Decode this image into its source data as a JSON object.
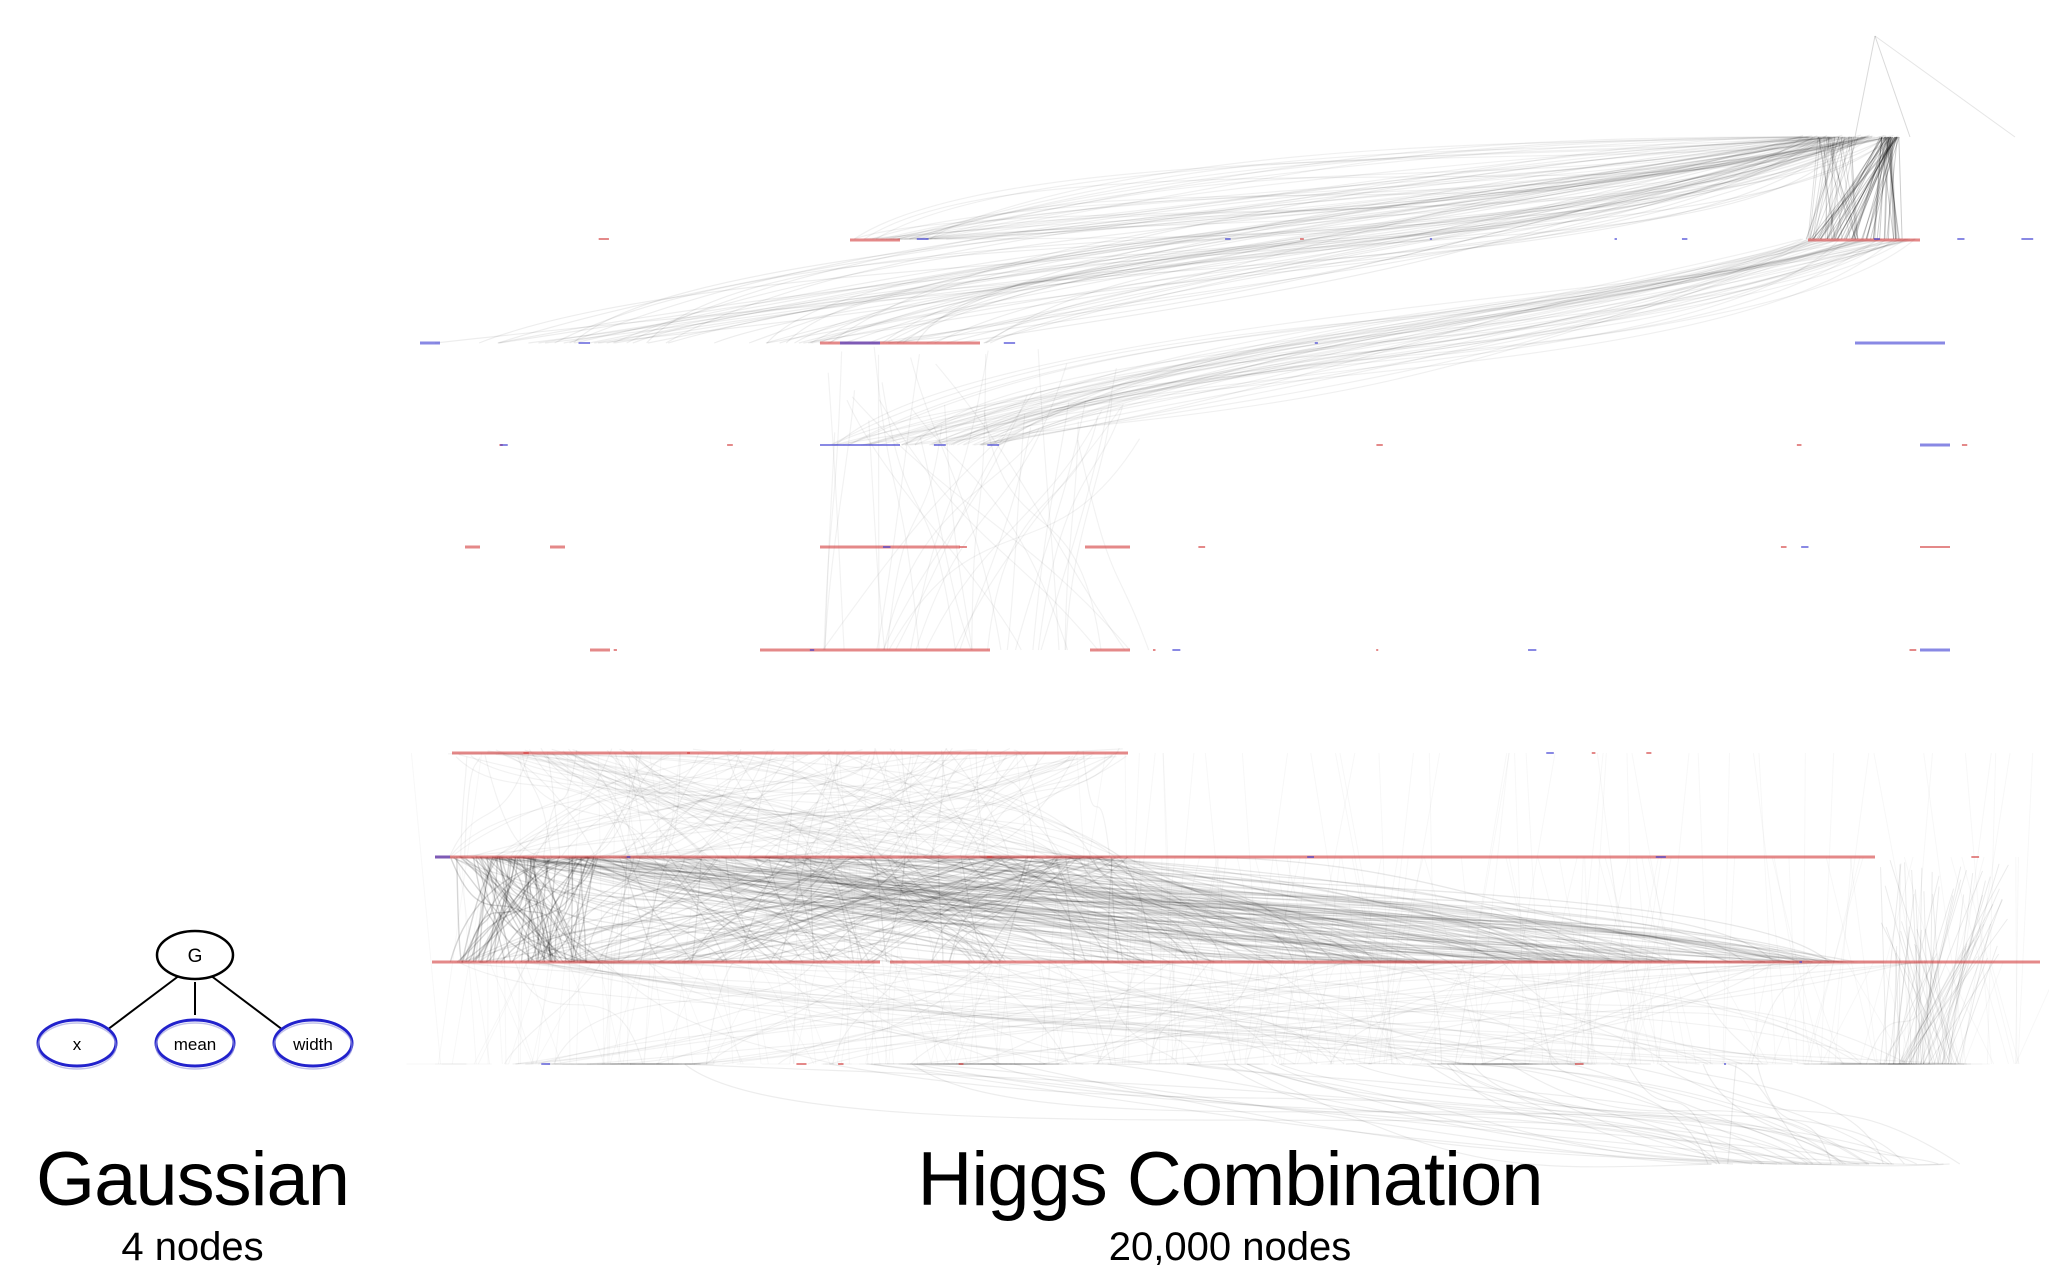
{
  "small_graph": {
    "root": {
      "label": "G"
    },
    "children": [
      {
        "label": "x"
      },
      {
        "label": "mean"
      },
      {
        "label": "width"
      }
    ],
    "colors": {
      "root_stroke": "#000000",
      "child_stroke": "#2222cc",
      "edge": "#000000"
    }
  },
  "large_graph": {
    "colors": {
      "edge": "#000000",
      "node_red": "#d23a3a",
      "node_blue": "#3a3ad2"
    }
  },
  "captions": {
    "gaussian_title": "Gaussian",
    "gaussian_sub": "4 nodes",
    "higgs_title": "Higgs Combination",
    "higgs_sub": "20,000 nodes"
  }
}
